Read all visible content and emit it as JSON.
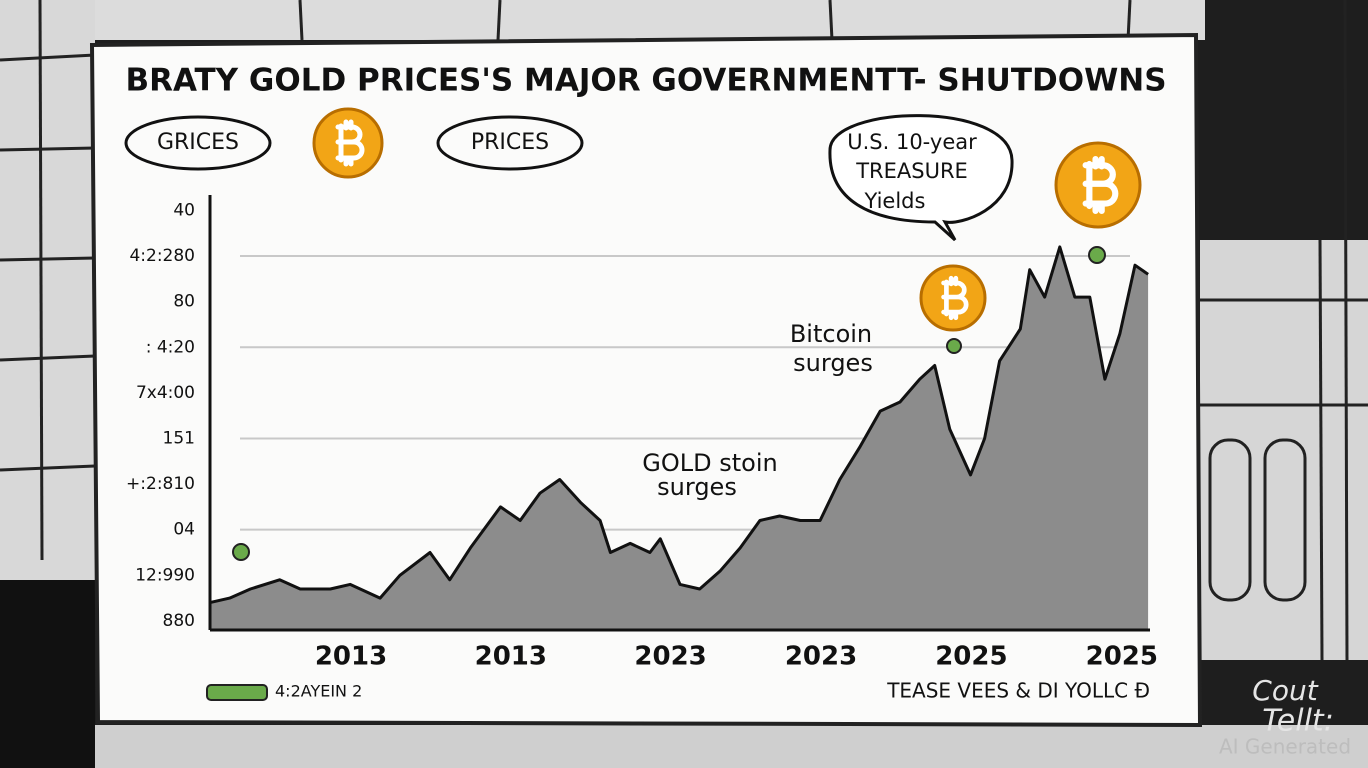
{
  "chart_data": {
    "type": "area",
    "title": "BRATY GOLD PRICES'S MAJOR GOVERNMENTT- SHUTDOWNS",
    "bubbles": [
      "GRICES",
      "PRICES"
    ],
    "callout": [
      "U.S. 10-year",
      "TREASURE",
      "Yields"
    ],
    "annotations": [
      {
        "lines": [
          "Bitcoin",
          "surges"
        ]
      },
      {
        "lines": [
          "GOLD stoin",
          "surges"
        ]
      }
    ],
    "x": [
      0,
      2.1,
      4.3,
      7.4,
      9.6,
      12.8,
      14.9,
      18.1,
      20.2,
      23.4,
      25.5,
      27.7,
      30.9,
      33,
      35.1,
      37.2,
      39.4,
      41.5,
      42.6,
      44.7,
      46.8,
      47.9,
      50,
      52.1,
      54.3,
      56.4,
      58.5,
      60.6,
      62.8,
      64.9,
      67,
      69.1,
      71.3,
      73.4,
      75.5,
      77.1,
      78.7,
      80.9,
      82.4,
      84,
      86.2,
      87.2,
      88.8,
      90.4,
      92,
      93.6,
      95.2,
      96.8,
      98.4,
      99.8
    ],
    "series": [
      {
        "name": "4:2AYEIN 2",
        "color": "#8c8c8c",
        "legend_color": "#6aaa4a",
        "values": [
          0.4,
          0.5,
          0.7,
          0.9,
          0.7,
          0.7,
          0.8,
          0.5,
          1.0,
          1.5,
          0.9,
          1.6,
          2.5,
          2.2,
          2.8,
          3.1,
          2.6,
          2.2,
          1.5,
          1.7,
          1.5,
          1.8,
          0.8,
          0.7,
          1.1,
          1.6,
          2.2,
          2.3,
          2.2,
          2.2,
          3.1,
          3.8,
          4.6,
          4.8,
          5.3,
          5.6,
          4.2,
          3.2,
          4.0,
          5.7,
          6.4,
          7.7,
          7.1,
          8.2,
          7.1,
          7.1,
          5.3,
          6.3,
          7.8,
          7.6
        ]
      }
    ],
    "xlim": [
      0,
      100
    ],
    "xticks": [
      {
        "value": 15,
        "label": "2013"
      },
      {
        "value": 32,
        "label": "2013"
      },
      {
        "value": 49,
        "label": "2023"
      },
      {
        "value": 65,
        "label": "2023"
      },
      {
        "value": 81,
        "label": "2025"
      },
      {
        "value": 97,
        "label": "2025"
      }
    ],
    "ylim": [
      -0.2,
      9.4
    ],
    "yticks": [
      {
        "value": 0,
        "label": "880"
      },
      {
        "value": 1,
        "label": "12:990"
      },
      {
        "value": 2,
        "label": "04"
      },
      {
        "value": 3,
        "label": "+:2:810"
      },
      {
        "value": 4,
        "label": "151"
      },
      {
        "value": 5,
        "label": "7x4:00"
      },
      {
        "value": 6,
        "label": ": 4:20"
      },
      {
        "value": 7,
        "label": "80"
      },
      {
        "value": 8,
        "label": "4:2:280"
      },
      {
        "value": 9,
        "label": "40"
      }
    ],
    "grid": true,
    "footer_note": "TEASE VEES & DI YOLLC Ð",
    "watermark": [
      "Cout",
      "Tellt:",
      "AI Generated"
    ]
  }
}
